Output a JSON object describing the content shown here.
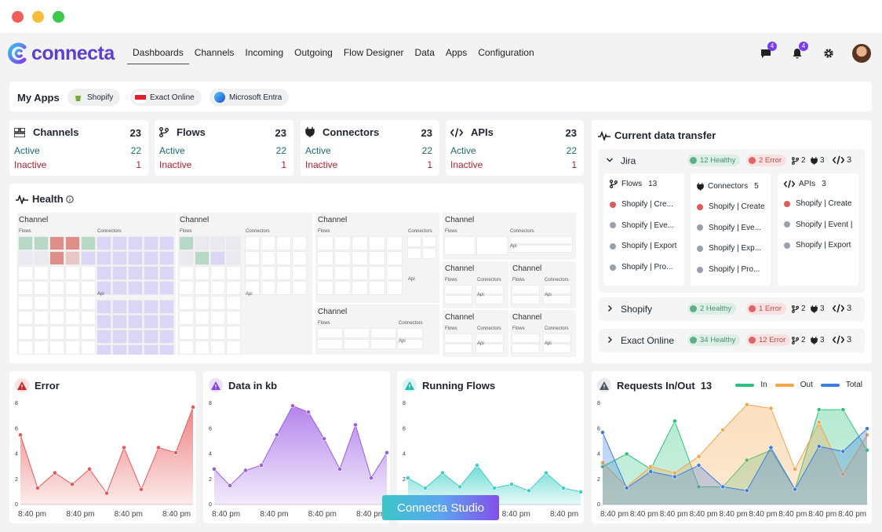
{
  "nav": {
    "logo": "connecta",
    "menu": [
      "Dashboards",
      "Channels",
      "Incoming",
      "Outgoing",
      "Flow Designer",
      "Data",
      "Apps",
      "Configuration"
    ],
    "active": "Dashboards",
    "messages_badge": "4",
    "notifications_badge": "4",
    "icons": [
      "chat-icon",
      "bell-icon",
      "gear-icon",
      "avatar"
    ]
  },
  "my_apps": {
    "title": "My Apps",
    "apps": [
      "Shopify",
      "Exact Online",
      "Microsoft Entra"
    ]
  },
  "stats": [
    {
      "title": "Channels",
      "total": "23",
      "active_label": "Active",
      "active": "22",
      "inactive_label": "Inactive",
      "inactive": "1",
      "icon": "channels-icon"
    },
    {
      "title": "Flows",
      "total": "23",
      "active_label": "Active",
      "active": "22",
      "inactive_label": "Inactive",
      "inactive": "1",
      "icon": "flows-icon"
    },
    {
      "title": "Connectors",
      "total": "23",
      "active_label": "Active",
      "active": "22",
      "inactive_label": "Inactive",
      "inactive": "1",
      "icon": "plug-icon"
    },
    {
      "title": "APIs",
      "total": "23",
      "active_label": "Active",
      "active": "22",
      "inactive_label": "Inactive",
      "inactive": "1",
      "icon": "code-icon"
    }
  ],
  "health": {
    "title": "Health",
    "channel_label": "Channel",
    "flows_label": "Flows",
    "connectors_label": "Connectors",
    "api_label": "Api"
  },
  "transfer": {
    "title": "Current data transfer",
    "rows": [
      {
        "name": "Jira",
        "healthy": "12 Healthy",
        "error": "2 Error",
        "flows": "2",
        "connectors": "3",
        "apis": "3",
        "expanded": true
      },
      {
        "name": "Shopify",
        "healthy": "2  Healthy",
        "error": "1 Error",
        "flows": "2",
        "connectors": "3",
        "apis": "3",
        "expanded": false
      },
      {
        "name": "Exact Online",
        "healthy": "34  Healthy",
        "error": "12 Error",
        "flows": "2",
        "connectors": "3",
        "apis": "3",
        "expanded": false
      }
    ],
    "jira_detail": {
      "flows": {
        "title": "Flows",
        "count": "13",
        "items": [
          {
            "text": "Shopify | Cre...",
            "status": "error"
          },
          {
            "text": "Shopify | Eve...",
            "status": "idle"
          },
          {
            "text": "Shopify | Export",
            "status": "idle"
          },
          {
            "text": "Shopify | Pro...",
            "status": "idle"
          }
        ]
      },
      "connectors": {
        "title": "Connectors",
        "count": "5",
        "items": [
          {
            "text": "Shopify | Create",
            "status": "error"
          },
          {
            "text": "Shopify | Eve...",
            "status": "idle"
          },
          {
            "text": "Shopify | Exp...",
            "status": "idle"
          },
          {
            "text": "Shopify | Pro...",
            "status": "idle"
          }
        ]
      },
      "apis": {
        "title": "APIs",
        "count": "3",
        "items": [
          {
            "text": "Shopify | Create",
            "status": "error"
          },
          {
            "text": "Shopify | Event |",
            "status": "idle"
          },
          {
            "text": "Shopify | Export",
            "status": "idle"
          }
        ]
      }
    }
  },
  "charts": {
    "error": {
      "title": "Error"
    },
    "data_kb": {
      "title": "Data in kb"
    },
    "running": {
      "title": "Running Flows"
    },
    "requests": {
      "title": "Requests In/Out",
      "count": "13",
      "legend": [
        "In",
        "Out",
        "Total"
      ]
    }
  },
  "chart_data": [
    {
      "type": "area",
      "title": "Error",
      "ylim": [
        0,
        8
      ],
      "yticks": [
        0,
        2,
        4,
        6,
        8
      ],
      "xticks": [
        "8:40 pm",
        "8:40 pm",
        "8:40 pm",
        "8:40 pm"
      ],
      "color": "#e85a5a",
      "values": [
        5.5,
        1.3,
        2.5,
        1.6,
        2.8,
        0.9,
        4.5,
        1.2,
        4.5,
        4.1,
        7.7
      ]
    },
    {
      "type": "area",
      "title": "Data in kb",
      "ylim": [
        0,
        8
      ],
      "yticks": [
        0,
        2,
        4,
        6,
        8
      ],
      "xticks": [
        "8:40 pm",
        "8:40 pm",
        "8:40 pm",
        "8:40 pm"
      ],
      "color": "#9a5ce6",
      "values": [
        2.8,
        1.5,
        2.7,
        3.1,
        5.5,
        7.8,
        7.3,
        5.2,
        2.8,
        6.3,
        2.1,
        4.1
      ]
    },
    {
      "type": "area",
      "title": "Running Flows",
      "ylim": [
        0,
        8
      ],
      "yticks": [
        0,
        2,
        4,
        6,
        8
      ],
      "xticks": [
        "8:40 pm",
        "8:40 pm",
        "8:40 pm",
        "8:40 pm"
      ],
      "color": "#3fcfc7",
      "values": [
        2.1,
        1.3,
        2.5,
        1.4,
        3.1,
        1.3,
        1.6,
        1.1,
        2.5,
        1.3,
        1.0
      ]
    },
    {
      "type": "area",
      "title": "Requests In/Out",
      "ylim": [
        0,
        8
      ],
      "yticks": [
        0,
        2,
        4,
        6,
        8
      ],
      "xticks": [
        "8:40 pm",
        "8:40 pm",
        "8:40 pm",
        "8:40 pm",
        "8:40 pm",
        "8:40 pm",
        "8:40 pm",
        "8:40 pm",
        "8:40 pm"
      ],
      "series": [
        {
          "name": "In",
          "color": "#2ec27e",
          "values": [
            3.0,
            4.0,
            2.8,
            6.6,
            1.4,
            1.4,
            3.5,
            4.3,
            1.2,
            7.5,
            7.5,
            4.3
          ]
        },
        {
          "name": "Out",
          "color": "#f5a54a",
          "values": [
            3.3,
            1.4,
            3.0,
            2.5,
            3.8,
            5.9,
            7.9,
            7.6,
            2.8,
            6.5,
            2.4,
            5.5
          ]
        },
        {
          "name": "Total",
          "color": "#3b7de0",
          "values": [
            5.7,
            1.3,
            2.6,
            2.2,
            3.1,
            1.4,
            1.1,
            4.5,
            1.2,
            4.6,
            4.2,
            6.0
          ]
        }
      ]
    }
  ],
  "studio": "Connecta Studio"
}
